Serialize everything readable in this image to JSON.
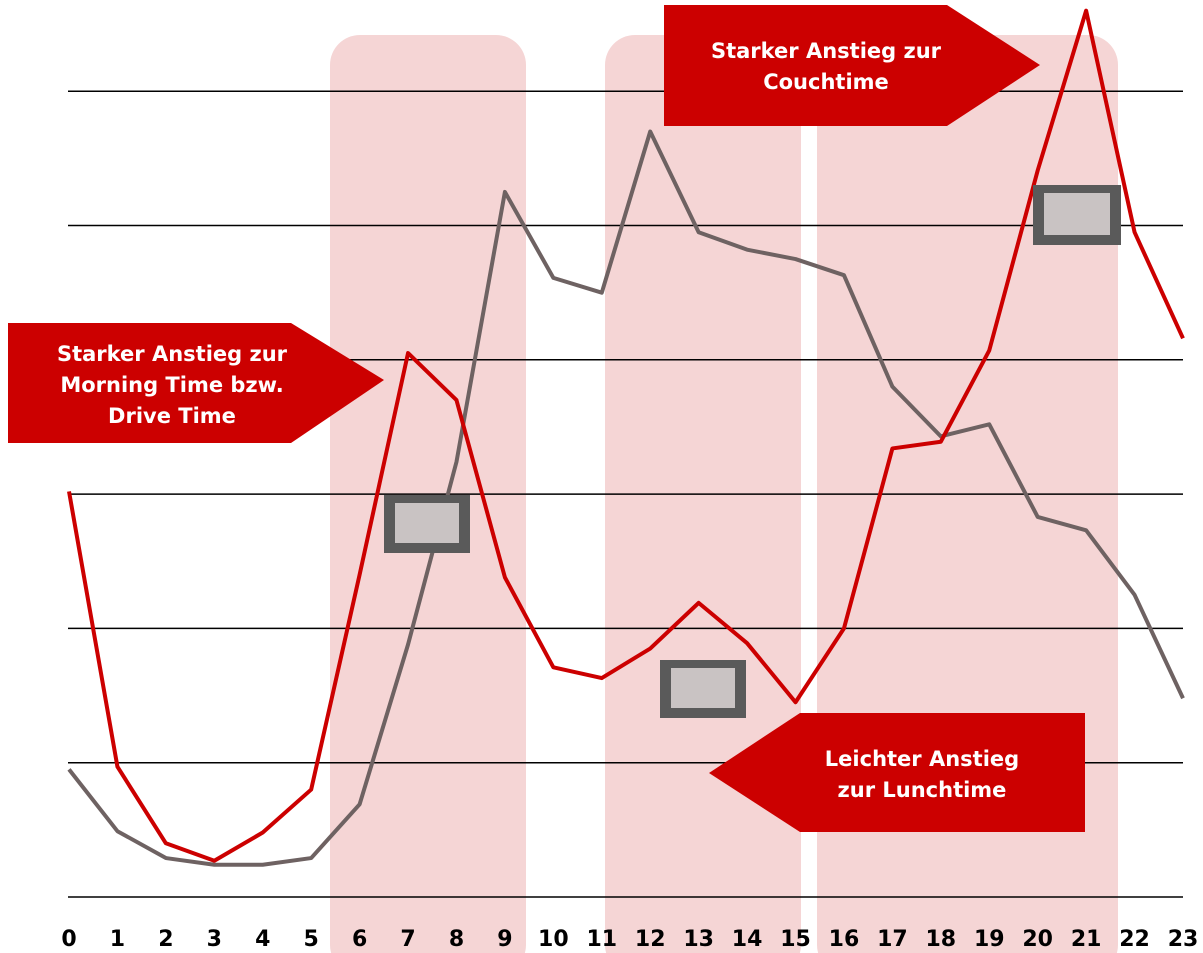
{
  "chart_data": {
    "type": "line",
    "annotations": [
      [
        "Starker Anstieg zur",
        "Morning Time bzw.",
        "Drive Time"
      ],
      [
        "Starker Anstieg zur",
        "Couchtime"
      ],
      [
        "Leichter Anstieg",
        "zur Lunchtime"
      ]
    ],
    "x": [
      0,
      1,
      2,
      3,
      4,
      5,
      6,
      7,
      8,
      9,
      10,
      11,
      12,
      13,
      14,
      15,
      16,
      17,
      18,
      19,
      20,
      21,
      22,
      23
    ],
    "xlim": [
      0,
      23
    ],
    "xticks": [
      0,
      1,
      2,
      3,
      4,
      5,
      6,
      7,
      8,
      9,
      10,
      11,
      12,
      13,
      14,
      15,
      16,
      17,
      18,
      19,
      20,
      21,
      22,
      23
    ],
    "ylim": [
      0,
      6.7
    ],
    "grid_lines": [
      0,
      1,
      2,
      3,
      4,
      5,
      6
    ],
    "series": [
      {
        "color": "#cc0000",
        "values": [
          3.02,
          0.97,
          0.4,
          0.27,
          0.48,
          0.8,
          2.4,
          4.05,
          3.7,
          2.38,
          1.71,
          1.63,
          1.85,
          2.19,
          1.89,
          1.45,
          2.0,
          3.34,
          3.39,
          4.07,
          5.41,
          6.6,
          4.95,
          4.16
        ]
      },
      {
        "color": "#6e6262",
        "values": [
          0.95,
          0.49,
          0.29,
          0.24,
          0.24,
          0.29,
          0.69,
          1.88,
          3.24,
          5.25,
          4.61,
          4.5,
          5.7,
          4.95,
          4.82,
          4.75,
          4.63,
          3.8,
          3.43,
          3.52,
          2.83,
          2.73,
          2.25,
          1.48
        ]
      }
    ]
  }
}
